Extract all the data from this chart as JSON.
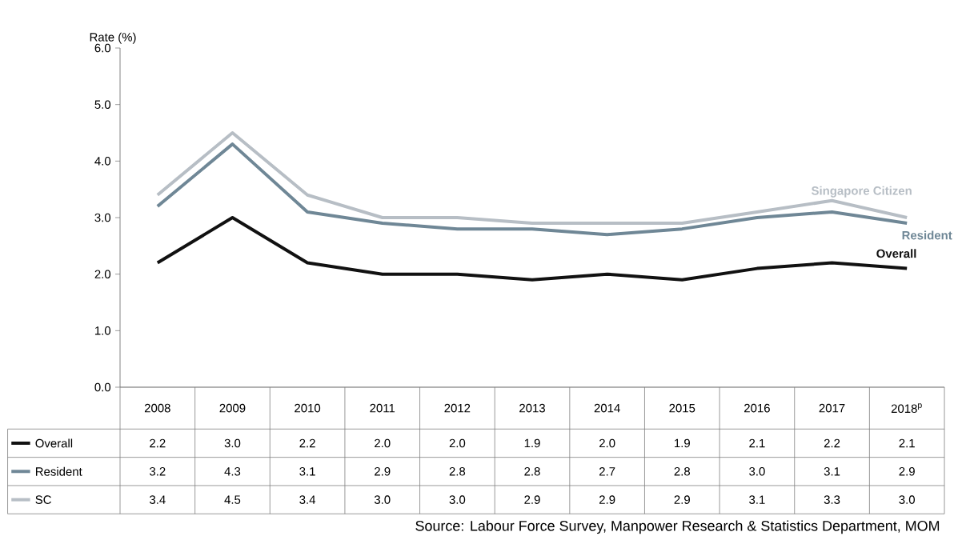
{
  "chart_data": {
    "type": "line",
    "ylabel": "Rate (%)",
    "categories": [
      "2008",
      "2009",
      "2010",
      "2011",
      "2012",
      "2013",
      "2014",
      "2015",
      "2016",
      "2017",
      "2018$^{p}$"
    ],
    "series": [
      {
        "name": "Overall",
        "color": "#111111",
        "values": [
          2.2,
          3.0,
          2.2,
          2.0,
          2.0,
          1.9,
          2.0,
          1.9,
          2.1,
          2.2,
          2.1
        ],
        "value_labels": [
          "2.2",
          "3.0",
          "2.2",
          "2.0",
          "2.0",
          "1.9",
          "2.0",
          "1.9",
          "2.1",
          "2.2",
          "2.1"
        ]
      },
      {
        "name": "Resident",
        "color": "#6f8796",
        "values": [
          3.2,
          4.3,
          3.1,
          2.9,
          2.8,
          2.8,
          2.7,
          2.8,
          3.0,
          3.1,
          2.9
        ],
        "value_labels": [
          "3.2",
          "4.3",
          "3.1",
          "2.9",
          "2.8",
          "2.8",
          "2.7",
          "2.8",
          "3.0",
          "3.1",
          "2.9"
        ]
      },
      {
        "name": "SC",
        "color": "#b7bec5",
        "values": [
          3.4,
          4.5,
          3.4,
          3.0,
          3.0,
          2.9,
          2.9,
          2.9,
          3.1,
          3.3,
          3.0
        ],
        "value_labels": [
          "3.4",
          "4.5",
          "3.4",
          "3.0",
          "3.0",
          "2.9",
          "2.9",
          "2.9",
          "3.1",
          "3.3",
          "3.0"
        ]
      }
    ],
    "ylim": [
      0,
      6
    ],
    "yticks": [
      {
        "value": 0,
        "label": "0.0"
      },
      {
        "value": 1,
        "label": "1.0"
      },
      {
        "value": 2,
        "label": "2.0"
      },
      {
        "value": 3,
        "label": "3.0"
      },
      {
        "value": 4,
        "label": "4.0"
      },
      {
        "value": 5,
        "label": "5.0"
      },
      {
        "value": 6,
        "label": "6.0"
      }
    ],
    "legend": "bottom",
    "marker": "none",
    "line_style": "solid",
    "annotations": [
      {
        "text": "Singapore Citizen",
        "x": "2018$^{p}$",
        "y": 3.0
      },
      {
        "text": "Resident",
        "x": "2018$^{p}$",
        "y": 2.9
      },
      {
        "text": "Overall",
        "x": "2018$^{p}$",
        "y": 2.1
      },
      "Source: Labour Force Survey, Manpower Research & Statistics Department, MOM"
    ]
  }
}
